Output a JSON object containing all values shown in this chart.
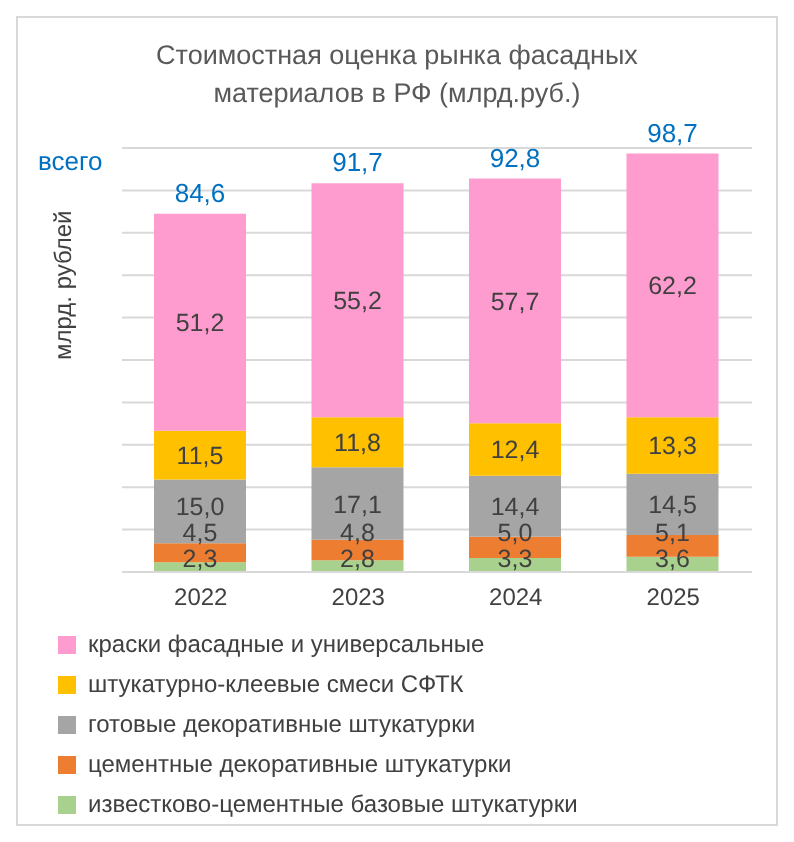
{
  "chart_data": {
    "type": "bar",
    "stacked": true,
    "title": "Стоимостная оценка рынка фасадных материалов  в РФ (млрд.руб.)",
    "ylabel": "млрд. рублей",
    "annotations": [
      "всего"
    ],
    "categories": [
      "2022",
      "2023",
      "2024",
      "2025"
    ],
    "series": [
      {
        "name": "известково-цементные  базовые штукатурки",
        "color": "#a9d18e",
        "values": [
          2.3,
          2.8,
          3.3,
          3.6
        ],
        "value_labels": [
          "2,3",
          "2,8",
          "3,3",
          "3,6"
        ]
      },
      {
        "name": "цементные  декоративные штукатурки",
        "color": "#ed7d31",
        "values": [
          4.5,
          4.8,
          5.0,
          5.1
        ],
        "value_labels": [
          "4,5",
          "4,8",
          "5,0",
          "5,1"
        ]
      },
      {
        "name": "готовые декоративные штукатурки",
        "color": "#a5a5a5",
        "values": [
          15.0,
          17.1,
          14.4,
          14.5
        ],
        "value_labels": [
          "15,0",
          "17,1",
          "14,4",
          "14,5"
        ]
      },
      {
        "name": "штукатурно-клеевые  смеси СФТК",
        "color": "#ffc000",
        "values": [
          11.5,
          11.8,
          12.4,
          13.3
        ],
        "value_labels": [
          "11,5",
          "11,8",
          "12,4",
          "13,3"
        ]
      },
      {
        "name": "краски фасадные и универсальные",
        "color": "#ff9ccf",
        "values": [
          51.2,
          55.2,
          57.7,
          62.2
        ],
        "value_labels": [
          "51,2",
          "55,2",
          "57,7",
          "62,2"
        ]
      }
    ],
    "totals": [
      "84,6",
      "91,7",
      "92,8",
      "98,7"
    ],
    "ylim": [
      0,
      100
    ],
    "grid": "y",
    "tick_labels": "x",
    "legend": "bottom"
  }
}
